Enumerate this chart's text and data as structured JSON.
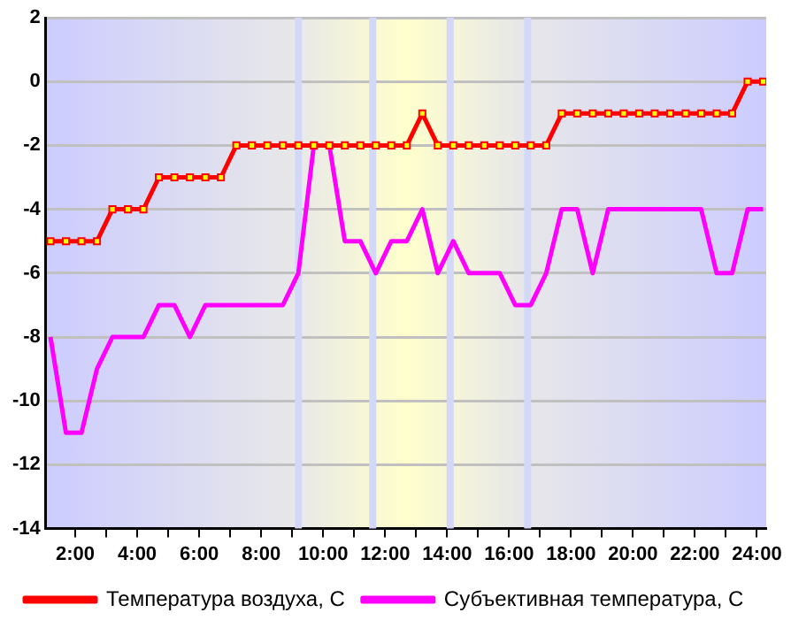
{
  "chart_data": {
    "type": "line",
    "x": [
      1.2,
      1.7,
      2.2,
      2.7,
      3.2,
      3.7,
      4.2,
      4.7,
      5.2,
      5.7,
      6.2,
      6.7,
      7.2,
      7.7,
      8.2,
      8.7,
      9.2,
      9.7,
      10.2,
      10.7,
      11.2,
      11.7,
      12.2,
      12.7,
      13.2,
      13.7,
      14.2,
      14.7,
      15.2,
      15.7,
      16.2,
      16.7,
      17.2,
      17.7,
      18.2,
      18.7,
      19.2,
      19.7,
      20.2,
      20.7,
      21.2,
      21.7,
      22.2,
      22.7,
      23.2,
      23.7,
      24.2
    ],
    "series": [
      {
        "name": "Температура воздуха, С",
        "color": "#ff0000",
        "marker": "square",
        "values": [
          -5,
          -5,
          -5,
          -5,
          -4,
          -4,
          -4,
          -3,
          -3,
          -3,
          -3,
          -3,
          -2,
          -2,
          -2,
          -2,
          -2,
          -2,
          -2,
          -2,
          -2,
          -2,
          -2,
          -2,
          -1,
          -2,
          -2,
          -2,
          -2,
          -2,
          -2,
          -2,
          -2,
          -1,
          -1,
          -1,
          -1,
          -1,
          -1,
          -1,
          -1,
          -1,
          -1,
          -1,
          -1,
          0,
          0
        ]
      },
      {
        "name": "Субъективная температура, С",
        "color": "#ff00ff",
        "marker": "none",
        "values": [
          -8,
          -11,
          -11,
          -9,
          -8,
          -8,
          -8,
          -7,
          -7,
          -8,
          -7,
          -7,
          -7,
          -7,
          -7,
          -7,
          -6,
          -2,
          -2,
          -5,
          -5,
          -6,
          -5,
          -5,
          -4,
          -6,
          -5,
          -6,
          -6,
          -6,
          -7,
          -7,
          -6,
          -4,
          -4,
          -6,
          -4,
          -4,
          -4,
          -4,
          -4,
          -4,
          -4,
          -6,
          -6,
          -4,
          -4
        ]
      }
    ],
    "xlim": [
      1.05,
      24.3
    ],
    "xticks": [
      {
        "value": 2,
        "label": "2:00"
      },
      {
        "value": 3,
        "label": null
      },
      {
        "value": 4,
        "label": "4:00"
      },
      {
        "value": 5,
        "label": null
      },
      {
        "value": 6,
        "label": "6:00"
      },
      {
        "value": 7,
        "label": null
      },
      {
        "value": 8,
        "label": "8:00"
      },
      {
        "value": 9,
        "label": null
      },
      {
        "value": 10,
        "label": "10:00"
      },
      {
        "value": 11,
        "label": null
      },
      {
        "value": 12,
        "label": "12:00"
      },
      {
        "value": 13,
        "label": null
      },
      {
        "value": 14,
        "label": "14:00"
      },
      {
        "value": 15,
        "label": null
      },
      {
        "value": 16,
        "label": "16:00"
      },
      {
        "value": 17,
        "label": null
      },
      {
        "value": 18,
        "label": "18:00"
      },
      {
        "value": 19,
        "label": null
      },
      {
        "value": 20,
        "label": "20:00"
      },
      {
        "value": 21,
        "label": null
      },
      {
        "value": 22,
        "label": "22:00"
      },
      {
        "value": 23,
        "label": null
      },
      {
        "value": 24,
        "label": "24:00"
      }
    ],
    "ylim": [
      -14,
      2
    ],
    "yticks": [
      -14,
      -12,
      -10,
      -8,
      -6,
      -4,
      -2,
      0,
      2
    ],
    "ref_lines": [
      {
        "axis": "x",
        "value": 9.2,
        "color": "#d4d8f8"
      },
      {
        "axis": "x",
        "value": 11.6,
        "color": "#d4d8f8"
      },
      {
        "axis": "x",
        "value": 14.1,
        "color": "#d4d8f8"
      },
      {
        "axis": "x",
        "value": 16.6,
        "color": "#d4d8f8"
      }
    ],
    "grid": "y",
    "legend": "bottom"
  }
}
